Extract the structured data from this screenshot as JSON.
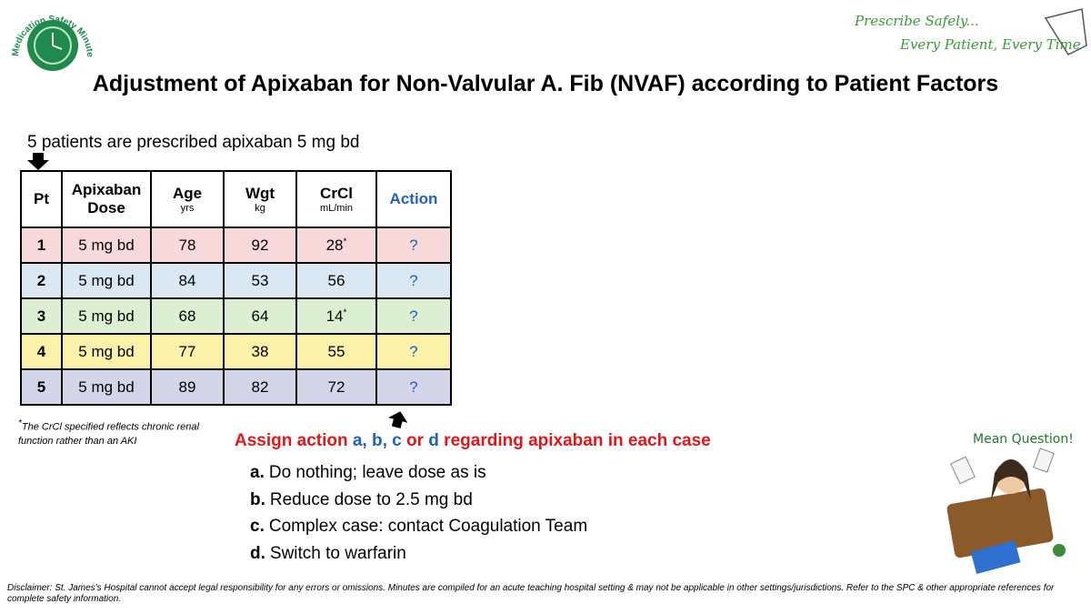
{
  "logo": {
    "text": "Medication Safety Minute"
  },
  "tagline": {
    "line1": "Prescribe Safely...",
    "line2": "Every Patient, Every Time"
  },
  "title": "Adjustment of Apixaban for Non-Valvular A. Fib (NVAF) according to Patient Factors",
  "intro": "5 patients are prescribed apixaban 5 mg bd",
  "table": {
    "headers": [
      {
        "label": "Pt"
      },
      {
        "label": "Apixaban Dose"
      },
      {
        "label": "Age",
        "unit": "yrs"
      },
      {
        "label": "Wgt",
        "unit": "kg"
      },
      {
        "label": "CrCl",
        "unit": "mL/min"
      },
      {
        "label": "Action",
        "color": "#1f5fc8"
      }
    ],
    "rows": [
      {
        "pt": 1,
        "dose": "5 mg bd",
        "age": 78,
        "wgt": 92,
        "crcl": 28,
        "crcl_note": "*",
        "action": "?",
        "color": "#f8d9da"
      },
      {
        "pt": 2,
        "dose": "5 mg bd",
        "age": 84,
        "wgt": 53,
        "crcl": 56,
        "action": "?",
        "color": "#d9e8f3"
      },
      {
        "pt": 3,
        "dose": "5 mg bd",
        "age": 68,
        "wgt": 64,
        "crcl": 14,
        "crcl_note": "*",
        "action": "?",
        "color": "#dcefd2"
      },
      {
        "pt": 4,
        "dose": "5 mg bd",
        "age": 77,
        "wgt": 38,
        "crcl": 55,
        "action": "?",
        "color": "#fbf1a8"
      },
      {
        "pt": 5,
        "dose": "5 mg bd",
        "age": 89,
        "wgt": 82,
        "crcl": 72,
        "action": "?",
        "color": "#d3d6e9"
      }
    ]
  },
  "footnote": {
    "marker": "*",
    "text": "The CrCl specified reflects chronic renal function rather than an AKI"
  },
  "assign": [
    {
      "text": "Assign action ",
      "color": "#e0161b"
    },
    {
      "text": "a, ",
      "color": "#1f5fc8"
    },
    {
      "text": "b, ",
      "color": "#1f5fc8"
    },
    {
      "text": "c ",
      "color": "#1f5fc8"
    },
    {
      "text": "or ",
      "color": "#e0161b"
    },
    {
      "text": "d",
      "color": "#1f5fc8"
    },
    {
      "text": " regarding apixaban in each case",
      "color": "#e0161b"
    }
  ],
  "options": [
    {
      "letter": "a.",
      "text": "Do nothing; leave dose as is"
    },
    {
      "letter": "b.",
      "text": "Reduce dose to 2.5 mg bd"
    },
    {
      "letter": "c.",
      "text": "Complex case: contact Coagulation Team"
    },
    {
      "letter": "d.",
      "text": "Switch to warfarin"
    }
  ],
  "mean_question": "Mean Question!",
  "disclaimer": "Disclaimer: St. James's Hospital cannot accept legal responsibility for any errors or omissions. Minutes are compiled for an acute teaching hospital setting & may not be applicable in other settings/jurisdictions. Refer to the SPC & other appropriate references for complete safety information."
}
